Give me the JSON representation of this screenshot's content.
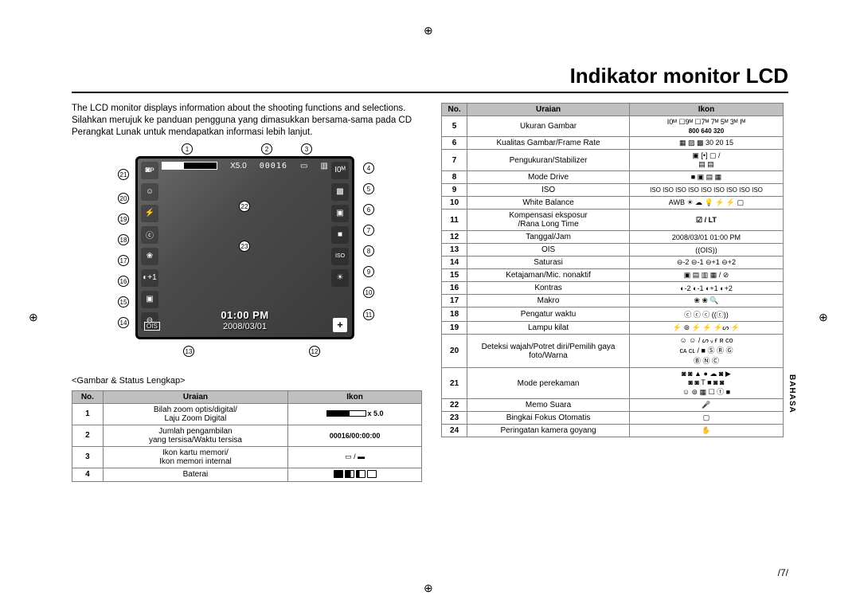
{
  "title": "Indikator monitor LCD",
  "intro": "The LCD monitor displays information about the shooting functions and selections. Silahkan merujuk ke panduan pengguna yang dimasukkan bersama-sama pada CD Perangkat Lunak untuk mendapatkan informasi lebih lanjut.",
  "caption": "<Gambar & Status Lengkap>",
  "side_tab": "BAHASA",
  "page_number": "/7/",
  "lcd": {
    "zoom_label": "X5.0",
    "counter": "00016",
    "time": "01:00 PM",
    "date": "2008/03/01",
    "callouts_right": [
      "4",
      "5",
      "6",
      "7",
      "8",
      "9",
      "10",
      "11"
    ],
    "callouts_left": [
      "21",
      "20",
      "19",
      "18",
      "17",
      "16",
      "15",
      "14"
    ],
    "callouts_top": [
      "1",
      "2",
      "3"
    ],
    "callouts_bottom": [
      "13",
      "12"
    ],
    "callouts_inner": [
      "22",
      "23"
    ]
  },
  "table_left": {
    "headers": [
      "No.",
      "Uraian",
      "Ikon"
    ],
    "rows": [
      {
        "no": "1",
        "uraian": "Bilah zoom optis/digital/\nLaju Zoom Digital",
        "ikon_type": "zoombar",
        "ikon_text": "x 5.0"
      },
      {
        "no": "2",
        "uraian": "Jumlah pengambilan\nyang tersisa/Waktu tersisa",
        "ikon_type": "bold",
        "ikon_text": "00016/00:00:00"
      },
      {
        "no": "3",
        "uraian": "Ikon kartu memori/\nIkon memori internal",
        "ikon_type": "cards",
        "ikon_text": "▭ / ▬"
      },
      {
        "no": "4",
        "uraian": "Baterai",
        "ikon_type": "battery",
        "ikon_text": ""
      }
    ]
  },
  "table_right": {
    "headers": [
      "No.",
      "Uraian",
      "Ikon"
    ],
    "rows": [
      {
        "no": "5",
        "uraian": "Ukuran Gambar",
        "ikon_text": "I0ᴹ ☐9ᴹ ☐7ᴹ 7ᴹ 5ᴹ 3ᴹ Iᴹ",
        "sub": "800 640 320",
        "bold_sub": true
      },
      {
        "no": "6",
        "uraian": "Kualitas Gambar/Frame Rate",
        "ikon_text": "▦ ▨ ▩ 30 20 15"
      },
      {
        "no": "7",
        "uraian": "Pengukuran/Stabilizer",
        "ikon_text": "▣ [•] ▢ /\n▤ ▤"
      },
      {
        "no": "8",
        "uraian": "Mode Drive",
        "ikon_text": "■ ▣ ▤ ▦"
      },
      {
        "no": "9",
        "uraian": "ISO",
        "ikon_text": "ISO ISO ISO ISO ISO ISO ISO ISO ISO",
        "small": true
      },
      {
        "no": "10",
        "uraian": "White Balance",
        "ikon_text": "AWB ☀ ☁ 💡 ⚡ ⚡ ▢"
      },
      {
        "no": "11",
        "uraian": "Kompensasi eksposur\n/Rana Long Time",
        "ikon_text": "☑ / LT",
        "bold": true
      },
      {
        "no": "12",
        "uraian": "Tanggal/Jam",
        "ikon_text": "2008/03/01 01:00 PM"
      },
      {
        "no": "13",
        "uraian": "OIS",
        "ikon_text": "((OIS))"
      },
      {
        "no": "14",
        "uraian": "Saturasi",
        "ikon_text": "⊖-2 ⊖-1 ⊖+1 ⊖+2"
      },
      {
        "no": "15",
        "uraian": "Ketajaman/Mic. nonaktif",
        "ikon_text": "▣ ▤ ▥ ▦ / ⊘"
      },
      {
        "no": "16",
        "uraian": "Kontras",
        "ikon_text": "◐-2 ◐-1 ◐+1 ◐+2"
      },
      {
        "no": "17",
        "uraian": "Makro",
        "ikon_text": "❀ ❀ 🔍"
      },
      {
        "no": "18",
        "uraian": "Pengatur waktu",
        "ikon_text": "ⓒ ⓒ ⓒ ((ⓒ))"
      },
      {
        "no": "19",
        "uraian": "Lampu kilat",
        "ikon_text": "⚡ ⊚ ⚡ ⚡ ⚡ᔕ ⚡"
      },
      {
        "no": "20",
        "uraian": "Deteksi wajah/Potret diri/Pemilih gaya foto/Warna",
        "ikon_text": "☺ ☺ / ᔕ ᵥ ғ ʀ ᴄᴏ\nᴄᴀ ᴄʟ / ■ Ⓢ Ⓡ Ⓖ\nⒷ Ⓝ Ⓒ"
      },
      {
        "no": "21",
        "uraian": "Mode perekaman",
        "ikon_text": "◙ ◙ ▲ ● ☁ ◙ ▶\n◙ ◙ T ■ ◙ ◙\n☺ ⊚ ▦ ☐ ⓣ ■"
      },
      {
        "no": "22",
        "uraian": "Memo Suara",
        "ikon_text": "🎤"
      },
      {
        "no": "23",
        "uraian": "Bingkai Fokus Otomatis",
        "ikon_text": "▢"
      },
      {
        "no": "24",
        "uraian": "Peringatan kamera goyang",
        "ikon_text": "✋"
      }
    ]
  },
  "colors": {
    "table_header_bg": "#bfbfbf",
    "border": "#808080",
    "lcd_border": "#000000",
    "lcd_bg": "#2a2a2a"
  }
}
